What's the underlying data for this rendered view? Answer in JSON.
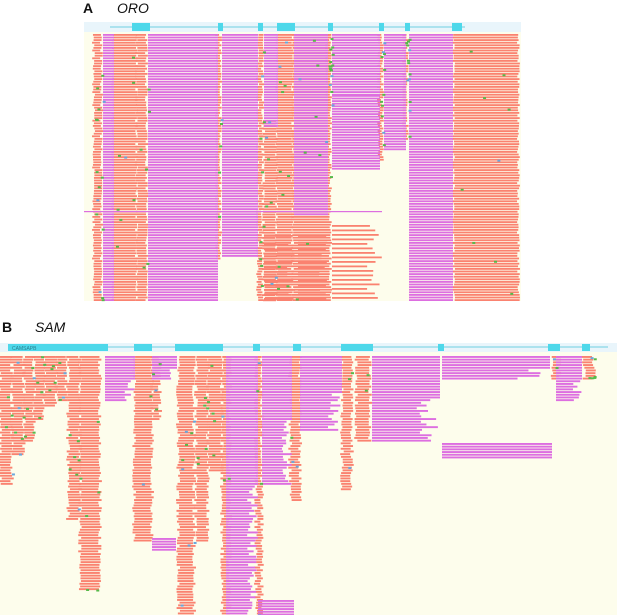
{
  "panels": [
    {
      "letter": "A",
      "sample": "ORO"
    },
    {
      "letter": "B",
      "sample": "SAM",
      "gene_track_label": "CAMSAPB"
    }
  ],
  "colors": {
    "background": "#fdfdec",
    "exon": "#4ed8ea",
    "intron_line": "#6fd0e0",
    "track_bg": "#e9f5fb",
    "read_salmon": "#fa8270",
    "read_pink": "#dd6ee0",
    "mismatch_green": "#55b94a",
    "mismatch_blue": "#6aa6dc"
  }
}
